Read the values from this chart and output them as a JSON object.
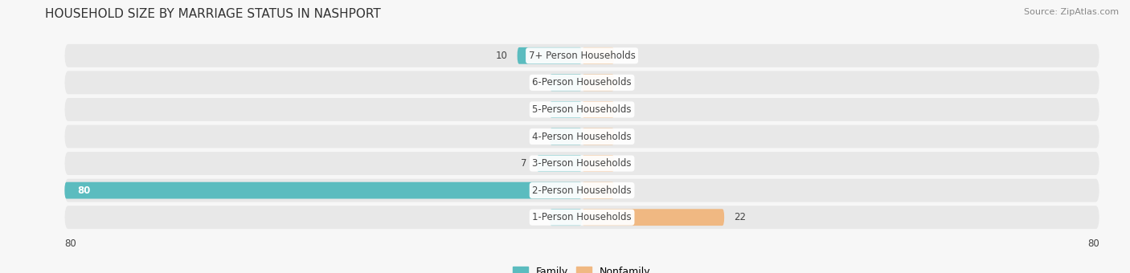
{
  "title": "HOUSEHOLD SIZE BY MARRIAGE STATUS IN NASHPORT",
  "source": "Source: ZipAtlas.com",
  "categories": [
    "7+ Person Households",
    "6-Person Households",
    "5-Person Households",
    "4-Person Households",
    "3-Person Households",
    "2-Person Households",
    "1-Person Households"
  ],
  "family_values": [
    10,
    0,
    0,
    0,
    7,
    80,
    0
  ],
  "nonfamily_values": [
    0,
    0,
    0,
    0,
    0,
    0,
    22
  ],
  "family_color": "#5bbcbf",
  "nonfamily_color": "#f0b882",
  "zero_stub": 5,
  "xlim_left": -80,
  "xlim_right": 80,
  "bar_height": 0.62,
  "row_bg_color": "#e8e8e8",
  "fig_bg_color": "#f7f7f7",
  "label_color": "#444444",
  "white_label_color": "#ffffff",
  "title_fontsize": 11,
  "cat_fontsize": 8.5,
  "val_fontsize": 8.5,
  "legend_fontsize": 9,
  "source_fontsize": 8
}
